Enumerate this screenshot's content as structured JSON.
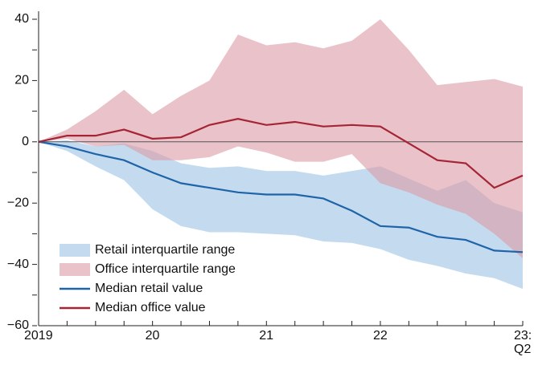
{
  "chart_data": {
    "type": "line",
    "categories": [
      "2019",
      null,
      null,
      null,
      "20",
      null,
      null,
      null,
      "21",
      null,
      null,
      null,
      "22",
      null,
      null,
      null,
      null,
      "23: Q2"
    ],
    "ylim": [
      -60,
      40
    ],
    "yticks": [
      {
        "value": -60,
        "label": "−60"
      },
      {
        "value": -40,
        "label": "−40"
      },
      {
        "value": -20,
        "label": "−20"
      },
      0,
      20,
      40
    ],
    "minor_yticks": [
      -50,
      -30,
      -10,
      10,
      30
    ],
    "legend": "lower-left",
    "series": [
      {
        "name": "Retail interquartile range",
        "kind": "band",
        "color": "#9cc3e4",
        "upper": [
          0,
          0.5,
          -1.5,
          -0.5,
          -3,
          -7,
          -8.5,
          -8,
          -9.5,
          -9.5,
          -11,
          -9.5,
          -8,
          -12,
          -16,
          -12.5,
          -20,
          -23
        ],
        "lower": [
          0,
          -3,
          -8,
          -12.5,
          -22,
          -27.5,
          -29.5,
          -29.5,
          -30,
          -30.5,
          -32.5,
          -33,
          -35,
          -38.5,
          -40.5,
          -43,
          -44.5,
          -48
        ]
      },
      {
        "name": "Office interquartile range",
        "kind": "band",
        "color": "#dc9aa5",
        "upper": [
          0,
          4,
          10,
          17,
          9,
          15,
          20,
          35,
          31.5,
          32.5,
          30.5,
          33,
          40,
          30,
          18.5,
          19.5,
          20.5,
          18
        ],
        "lower": [
          0,
          1,
          -1.5,
          -1,
          -6,
          -6,
          -5,
          -1.5,
          -3.5,
          -6.5,
          -6.5,
          -4,
          -13.5,
          -16.5,
          -20.5,
          -23.5,
          -30,
          -38
        ]
      },
      {
        "name": "Median retail value",
        "kind": "line",
        "color": "#1f64a8",
        "values": [
          0,
          -1.5,
          -4,
          -6,
          -10,
          -13.5,
          -15,
          -16.5,
          -17.2,
          -17.2,
          -18.5,
          -22.5,
          -27.5,
          -28,
          -31,
          -32,
          -35.5,
          -36
        ]
      },
      {
        "name": "Median office value",
        "kind": "line",
        "color": "#a52535",
        "values": [
          0,
          2,
          2,
          4,
          1,
          1.5,
          5.5,
          7.5,
          5.5,
          6.5,
          5,
          5.5,
          5,
          -0.5,
          -6,
          -7,
          -15,
          -11
        ]
      }
    ]
  }
}
